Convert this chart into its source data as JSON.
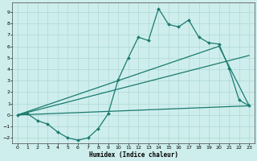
{
  "xlabel": "Humidex (Indice chaleur)",
  "xlim": [
    -0.5,
    23.5
  ],
  "ylim": [
    -2.5,
    9.8
  ],
  "xticks": [
    0,
    1,
    2,
    3,
    4,
    5,
    6,
    7,
    8,
    9,
    10,
    11,
    12,
    13,
    14,
    15,
    16,
    17,
    18,
    19,
    20,
    21,
    22,
    23
  ],
  "yticks": [
    -2,
    -1,
    0,
    1,
    2,
    3,
    4,
    5,
    6,
    7,
    8,
    9
  ],
  "bg_color": "#ceeeed",
  "grid_color": "#aed8d6",
  "line_color": "#1a7a6e",
  "series1_x": [
    0,
    1,
    2,
    3,
    4,
    5,
    6,
    7,
    8,
    9,
    10,
    11,
    12,
    13,
    14,
    15,
    16,
    17,
    18,
    19,
    20,
    21,
    22,
    23
  ],
  "series1_y": [
    0.0,
    0.1,
    -0.5,
    -0.8,
    -1.5,
    -2.0,
    -2.2,
    -2.0,
    -1.2,
    0.1,
    3.1,
    5.0,
    6.8,
    6.5,
    9.3,
    7.9,
    7.7,
    8.3,
    6.8,
    6.3,
    6.2,
    4.1,
    1.3,
    0.8
  ],
  "series2_x": [
    0,
    20,
    23
  ],
  "series2_y": [
    0.0,
    6.0,
    0.8
  ],
  "series3_x": [
    0,
    23
  ],
  "series3_y": [
    0.0,
    5.2
  ],
  "series4_x": [
    0,
    23
  ],
  "series4_y": [
    0.0,
    0.8
  ],
  "marker": "D",
  "markersize": 2.0,
  "linewidth": 0.9
}
